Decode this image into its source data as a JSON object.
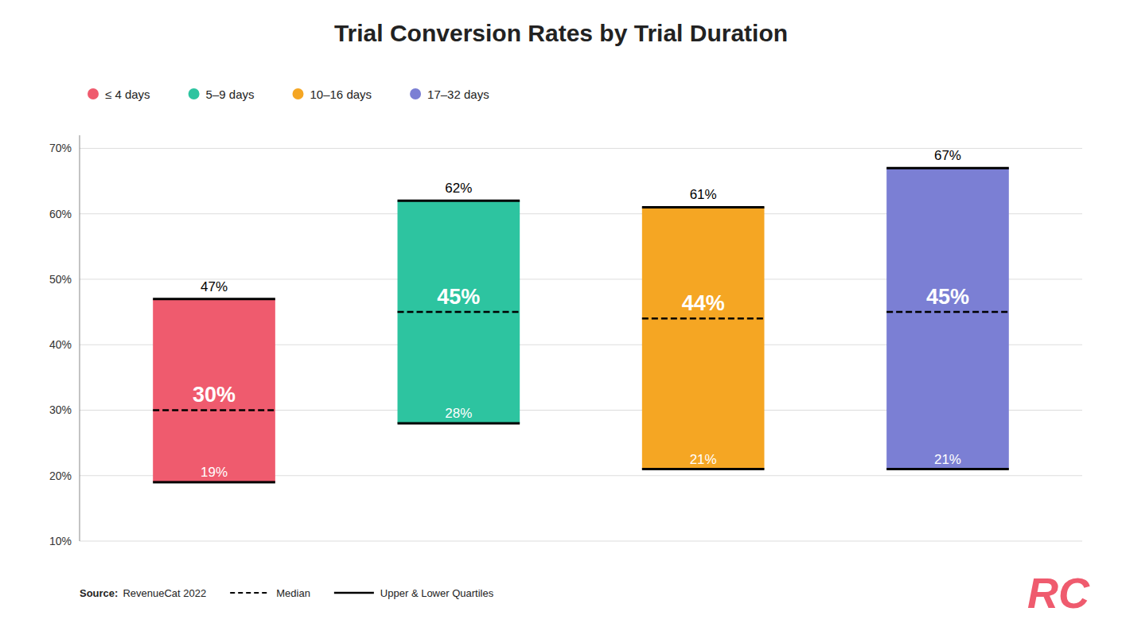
{
  "chart_data": {
    "type": "box",
    "title": "Trial Conversion Rates by Trial Duration",
    "categories": [
      "≤ 4 days",
      "5–9 days",
      "10–16 days",
      "17–32 days"
    ],
    "colors": [
      "#EF5B6E",
      "#2DC4A0",
      "#F5A623",
      "#7B7FD4"
    ],
    "lower_quartile": {
      "values": [
        19,
        28,
        21,
        21
      ],
      "value_labels": [
        "19%",
        "28%",
        "21%",
        "21%"
      ]
    },
    "median": {
      "values": [
        30,
        45,
        44,
        45
      ],
      "value_labels": [
        "30%",
        "45%",
        "44%",
        "45%"
      ]
    },
    "upper_quartile": {
      "values": [
        47,
        62,
        61,
        67
      ],
      "value_labels": [
        "47%",
        "62%",
        "61%",
        "67%"
      ]
    },
    "ylim": [
      10,
      72
    ],
    "yticks": [
      {
        "value": 10,
        "label": "10%"
      },
      {
        "value": 20,
        "label": "20%"
      },
      {
        "value": 30,
        "label": "30%"
      },
      {
        "value": 40,
        "label": "40%"
      },
      {
        "value": 50,
        "label": "50%"
      },
      {
        "value": 60,
        "label": "60%"
      },
      {
        "value": 70,
        "label": "70%"
      }
    ],
    "grid": true,
    "legend": "top",
    "tick_labels": "y",
    "data_labels": true,
    "annotations": [
      "Source:",
      "RevenueCat 2022",
      "Median",
      "Upper & Lower Quartiles",
      "RC"
    ]
  }
}
